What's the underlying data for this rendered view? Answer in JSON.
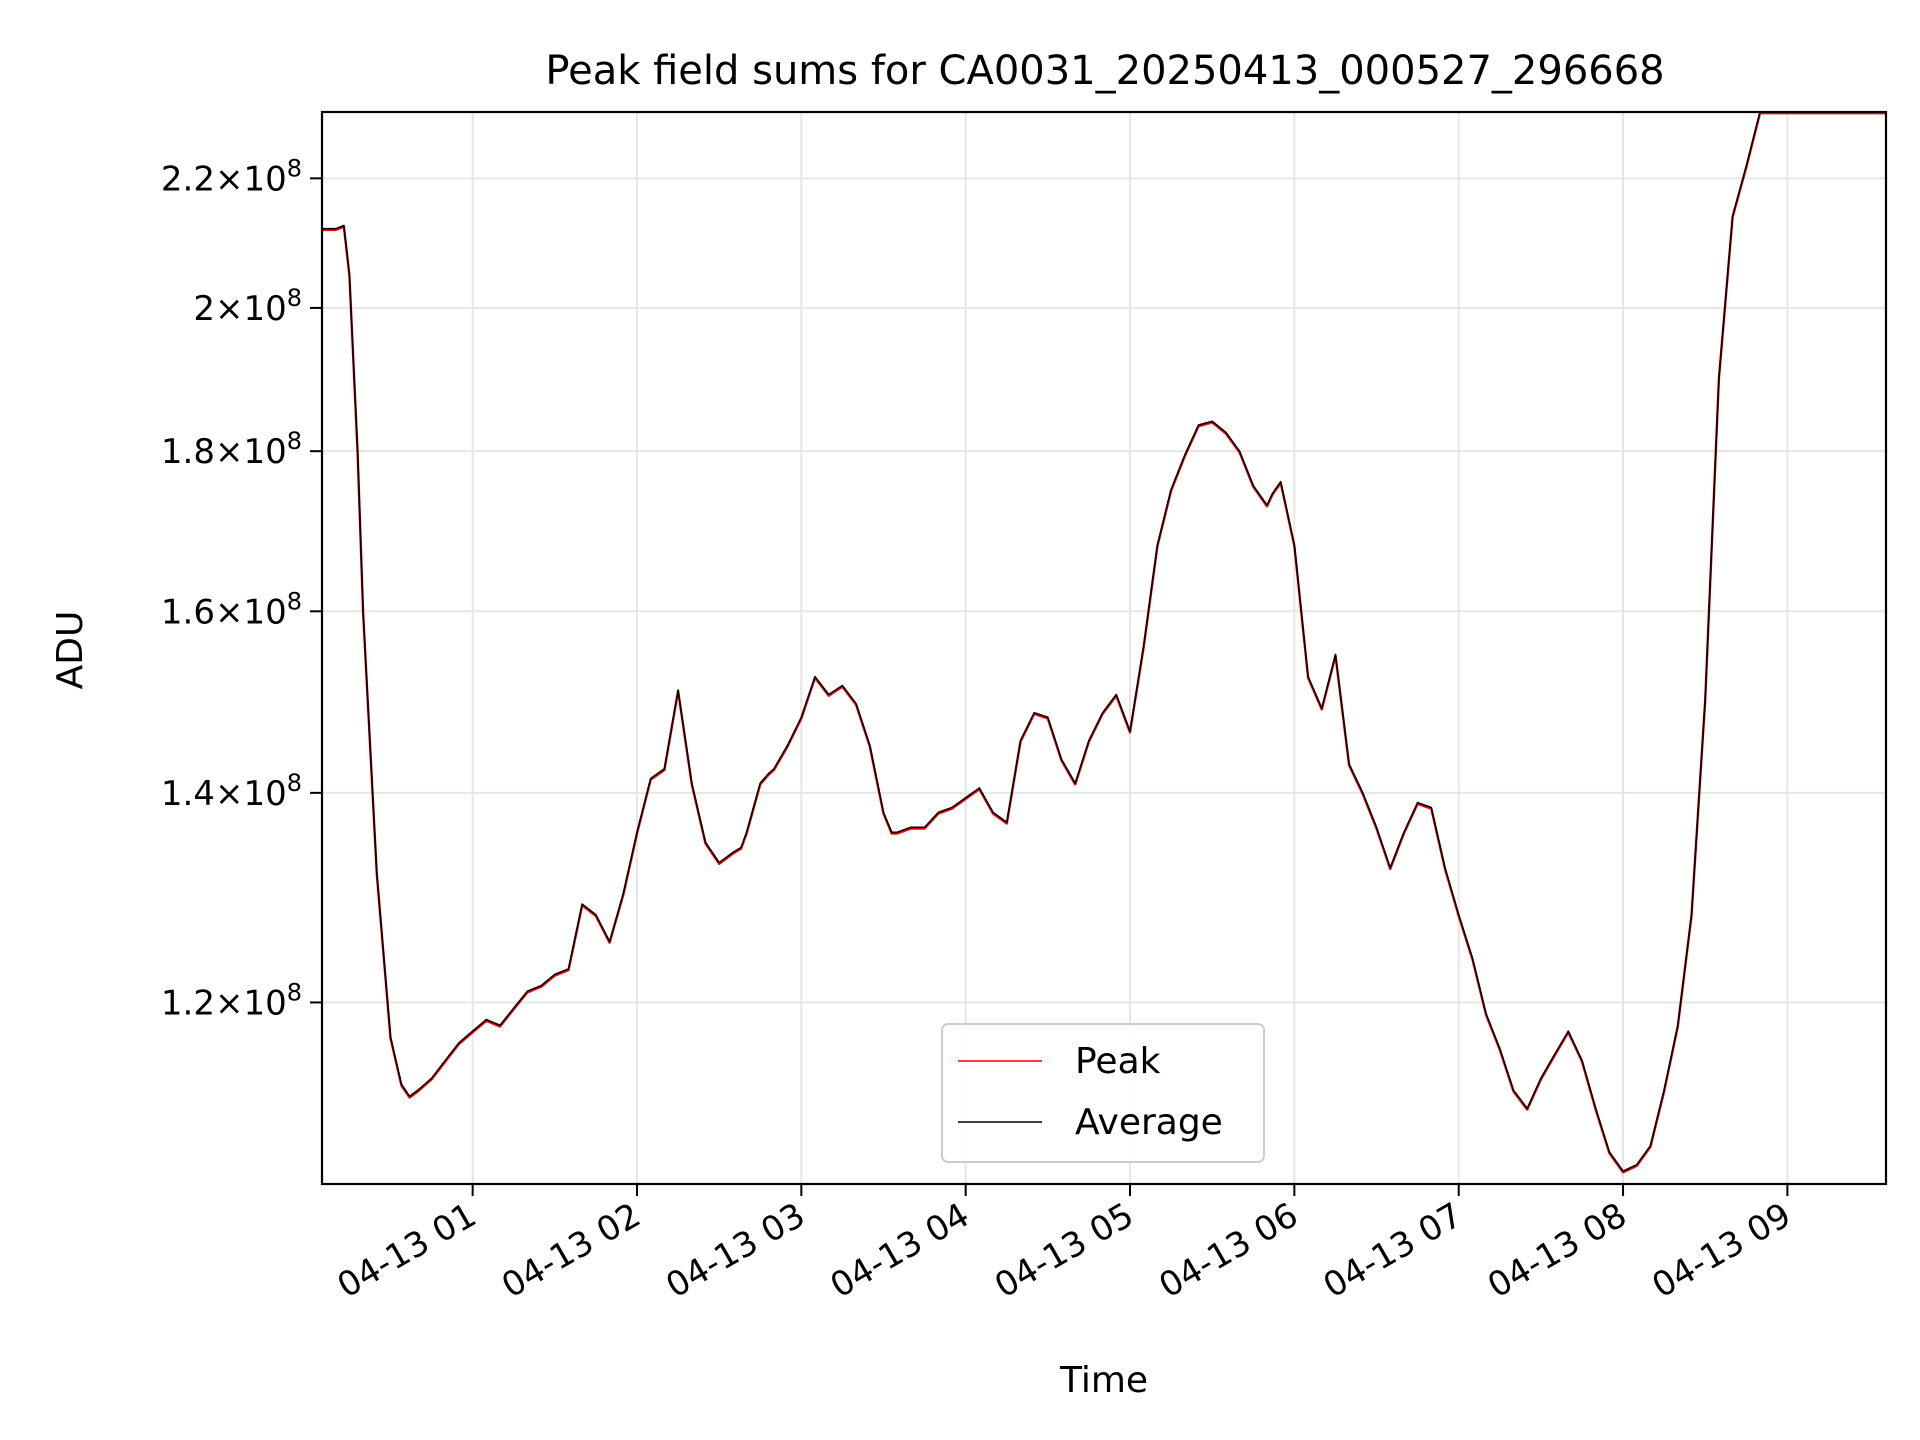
{
  "chart_data": {
    "type": "line",
    "title": "Peak field sums for CA0031_20250413_000527_296668",
    "xlabel": "Time",
    "ylabel": "ADU",
    "y_scale": "log",
    "xlim": [
      "2025-04-13 00:05",
      "2025-04-13 09:36"
    ],
    "ylim": [
      105000000,
      231000000
    ],
    "x_ticks": [
      "04-13 01",
      "04-13 02",
      "04-13 03",
      "04-13 04",
      "04-13 05",
      "04-13 06",
      "04-13 07",
      "04-13 08",
      "04-13 09"
    ],
    "y_ticks": [
      {
        "value": 120000000,
        "mantissa": "1.2",
        "exponent": "8"
      },
      {
        "value": 140000000,
        "mantissa": "1.4",
        "exponent": "8"
      },
      {
        "value": 160000000,
        "mantissa": "1.6",
        "exponent": "8"
      },
      {
        "value": 180000000,
        "mantissa": "1.8",
        "exponent": "8"
      },
      {
        "value": 200000000,
        "mantissa": "2",
        "exponent": "8"
      },
      {
        "value": 220000000,
        "mantissa": "2.2",
        "exponent": "8"
      }
    ],
    "times_symbol": "×",
    "grid": true,
    "legend_position": "bottom-center",
    "series": [
      {
        "name": "Peak",
        "color": "#ff0000"
      },
      {
        "name": "Average",
        "color": "#000000"
      }
    ],
    "x": [
      "00:05",
      "00:10",
      "00:13",
      "00:15",
      "00:18",
      "00:20",
      "00:25",
      "00:30",
      "00:34",
      "00:37",
      "00:40",
      "00:45",
      "00:50",
      "00:55",
      "01:00",
      "01:05",
      "01:10",
      "01:15",
      "01:20",
      "01:25",
      "01:30",
      "01:35",
      "01:40",
      "01:45",
      "01:50",
      "01:55",
      "02:00",
      "02:05",
      "02:10",
      "02:15",
      "02:20",
      "02:25",
      "02:30",
      "02:35",
      "02:38",
      "02:40",
      "02:45",
      "02:48",
      "02:50",
      "02:55",
      "03:00",
      "03:05",
      "03:10",
      "03:15",
      "03:20",
      "03:25",
      "03:30",
      "03:33",
      "03:35",
      "03:40",
      "03:45",
      "03:50",
      "03:55",
      "04:00",
      "04:05",
      "04:10",
      "04:15",
      "04:20",
      "04:25",
      "04:30",
      "04:35",
      "04:40",
      "04:45",
      "04:50",
      "04:55",
      "05:00",
      "05:05",
      "05:10",
      "05:15",
      "05:20",
      "05:25",
      "05:30",
      "05:35",
      "05:40",
      "05:45",
      "05:50",
      "05:52",
      "05:55",
      "06:00",
      "06:05",
      "06:10",
      "06:15",
      "06:20",
      "06:25",
      "06:30",
      "06:35",
      "06:40",
      "06:45",
      "06:50",
      "06:55",
      "07:00",
      "07:05",
      "07:10",
      "07:15",
      "07:20",
      "07:25",
      "07:30",
      "07:35",
      "07:40",
      "07:45",
      "07:50",
      "07:55",
      "08:00",
      "08:05",
      "08:10",
      "08:15",
      "08:20",
      "08:25",
      "08:30",
      "08:35",
      "08:40",
      "08:45",
      "08:50",
      "08:55",
      "09:00",
      "09:05",
      "09:10",
      "09:15",
      "09:20",
      "09:25",
      "09:30",
      "09:36"
    ],
    "values": [
      212000000,
      212000000,
      212500000,
      205000000,
      180000000,
      160000000,
      132000000,
      117000000,
      113000000,
      112000000,
      112500000,
      113500000,
      115000000,
      116500000,
      117500000,
      118500000,
      118000000,
      119500000,
      121000000,
      121500000,
      122500000,
      123000000,
      129000000,
      128000000,
      125500000,
      130000000,
      136000000,
      141500000,
      142500000,
      151000000,
      141000000,
      135000000,
      133000000,
      134000000,
      134500000,
      136000000,
      141000000,
      142000000,
      142500000,
      145000000,
      148000000,
      152500000,
      150500000,
      151500000,
      149500000,
      145000000,
      138000000,
      136000000,
      136000000,
      136500000,
      136500000,
      138000000,
      138500000,
      139500000,
      140500000,
      138000000,
      137000000,
      145500000,
      148500000,
      148000000,
      143500000,
      141000000,
      145500000,
      148500000,
      150500000,
      146500000,
      156000000,
      168000000,
      175000000,
      179500000,
      183500000,
      184000000,
      182500000,
      180000000,
      175500000,
      173000000,
      174500000,
      176000000,
      168000000,
      152500000,
      149000000,
      155000000,
      143000000,
      140000000,
      136500000,
      132500000,
      136000000,
      139000000,
      138500000,
      132500000,
      128000000,
      124000000,
      119000000,
      116000000,
      112500000,
      111000000,
      113500000,
      115500000,
      117500000,
      115000000,
      111000000,
      107500000,
      106000000,
      106500000,
      108000000,
      112500000,
      118000000,
      128000000,
      150000000,
      190000000,
      214000000,
      222000000,
      231000000,
      231000000,
      231000000,
      231000000,
      231000000,
      231000000,
      231000000,
      231000000,
      231000000,
      231000000
    ]
  }
}
